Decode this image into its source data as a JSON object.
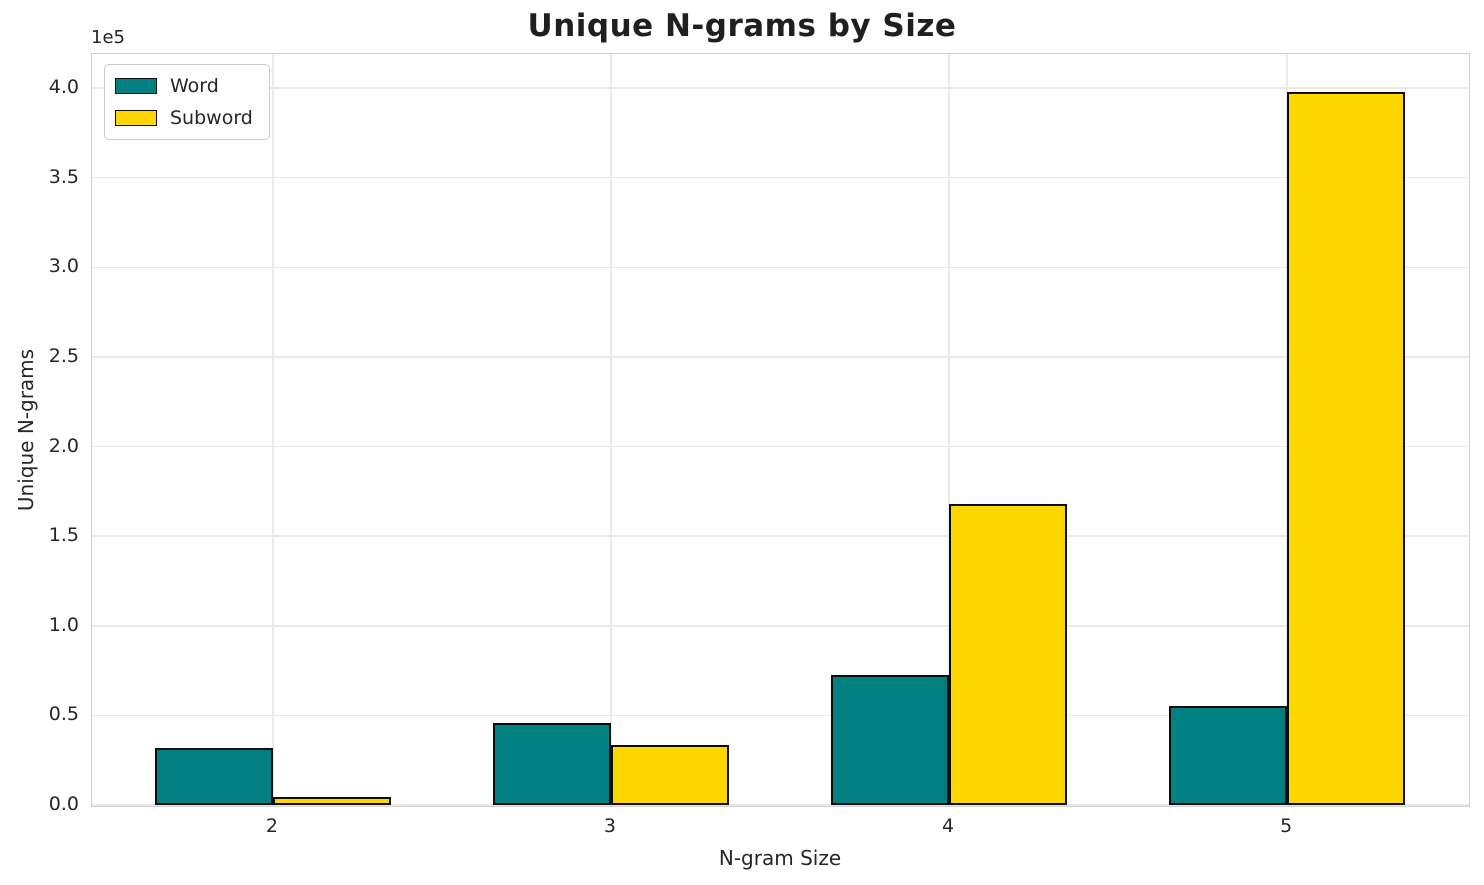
{
  "title": "Unique N-grams by Size",
  "chart_data": {
    "type": "bar",
    "title": "Unique N-grams by Size",
    "xlabel": "N-gram Size",
    "ylabel": "Unique N-grams",
    "y_offset_text": "1e5",
    "categories": [
      "2",
      "3",
      "4",
      "5"
    ],
    "series": [
      {
        "name": "Word",
        "color": "#008080",
        "values": [
          32000,
          45500,
          72500,
          55000
        ]
      },
      {
        "name": "Subword",
        "color": "#FFD700",
        "values": [
          4500,
          33500,
          168000,
          398000
        ]
      }
    ],
    "ylim": [
      0,
      419000
    ],
    "yticks": [
      0,
      50000,
      100000,
      150000,
      200000,
      250000,
      300000,
      350000,
      400000
    ],
    "ytick_labels": [
      "0.0",
      "0.5",
      "1.0",
      "1.5",
      "2.0",
      "2.5",
      "3.0",
      "3.5",
      "4.0"
    ],
    "grid": true,
    "legend_position": "upper left",
    "bar_edge_color": "#0d0d0d",
    "colors": {
      "word": "#008080",
      "subword": "#FFD700",
      "grid": "#e9e9e9",
      "spine": "#d0d0d0",
      "text": "#262626"
    }
  }
}
